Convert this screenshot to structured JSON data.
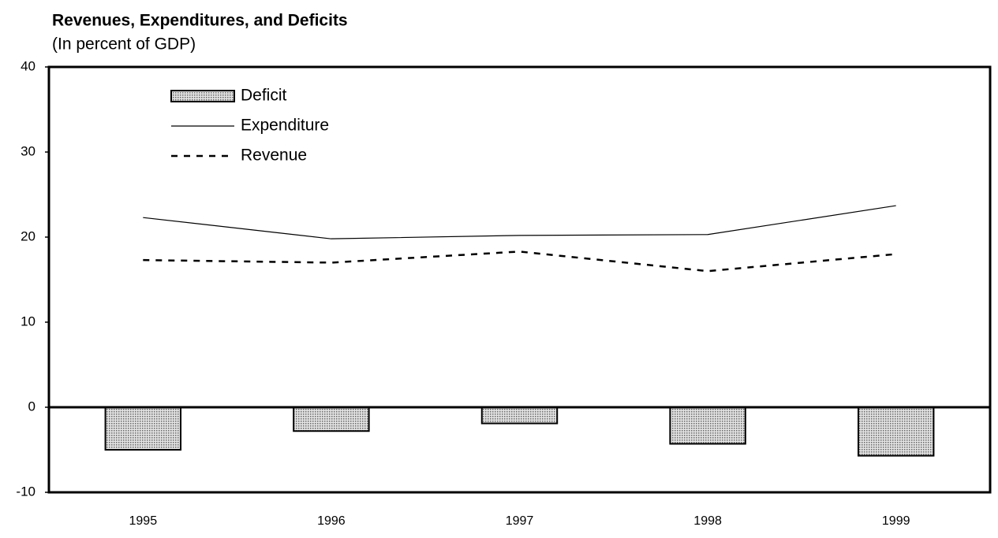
{
  "chart_data": {
    "type": "bar",
    "title": "Revenues, Expenditures, and Deficits",
    "subtitle": "(In percent of GDP)",
    "categories": [
      "1995",
      "1996",
      "1997",
      "1998",
      "1999"
    ],
    "series": [
      {
        "name": "Deficit",
        "type": "bar",
        "color": "#c8c8c8",
        "values": [
          -5.0,
          -2.8,
          -1.9,
          -4.3,
          -5.7
        ]
      },
      {
        "name": "Expenditure",
        "type": "line",
        "style": "solid",
        "color": "#000000",
        "values": [
          22.3,
          19.8,
          20.2,
          20.3,
          23.7
        ]
      },
      {
        "name": "Revenue",
        "type": "line",
        "style": "dashed",
        "color": "#000000",
        "values": [
          17.3,
          17.0,
          18.3,
          16.0,
          18.0
        ]
      }
    ],
    "ylim": [
      -10,
      40
    ],
    "yticks": [
      -10,
      0,
      10,
      20,
      30,
      40
    ],
    "zero_line": true
  }
}
